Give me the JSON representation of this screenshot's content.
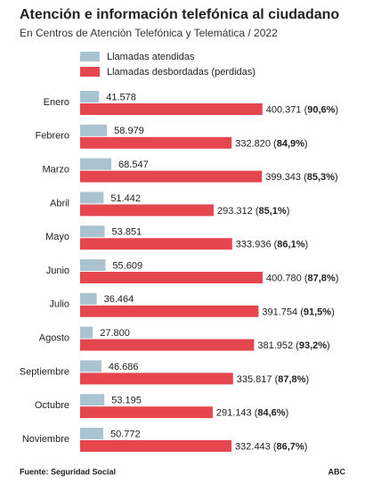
{
  "chart_data": {
    "type": "grouped-hbar",
    "title": "Atención e información telefónica al ciudadano",
    "subtitle": "En Centros de Atención Telefónica y Telemática / 2022",
    "categories": [
      "Enero",
      "Febrero",
      "Marzo",
      "Abril",
      "Mayo",
      "Junio",
      "Julio",
      "Agosto",
      "Septiembre",
      "Octubre",
      "Noviembre"
    ],
    "series": [
      {
        "name": "Llamadas atendidas",
        "color": "#a9c3d0",
        "values": [
          41578,
          58979,
          68547,
          51442,
          53851,
          55609,
          36464,
          27800,
          46686,
          53195,
          50772
        ],
        "value_labels": [
          "41.578",
          "58.979",
          "68.547",
          "51.442",
          "53.851",
          "55.609",
          "36.464",
          "27.800",
          "46.686",
          "53.195",
          "50.772"
        ]
      },
      {
        "name": "Llamadas desbordadas (perdidas)",
        "color": "#e6474f",
        "values": [
          400371,
          332820,
          399343,
          293312,
          333936,
          400780,
          391754,
          381952,
          335817,
          291143,
          332443
        ],
        "value_labels": [
          "400.371 (90,6%)",
          "332.820 (84,9%)",
          "399.343 (85,3%)",
          "293.312 (85,1%)",
          "333.936 (86,1%)",
          "400.780 (87,8%)",
          "391.754 (91,5%)",
          "381.952 (93,2%)",
          "335.817 (87,8%)",
          "291.143 (84,6%)",
          "332.443 (86,7%)"
        ]
      }
    ],
    "source": "Fuente: Seguridad Social",
    "credit": "ABC"
  }
}
